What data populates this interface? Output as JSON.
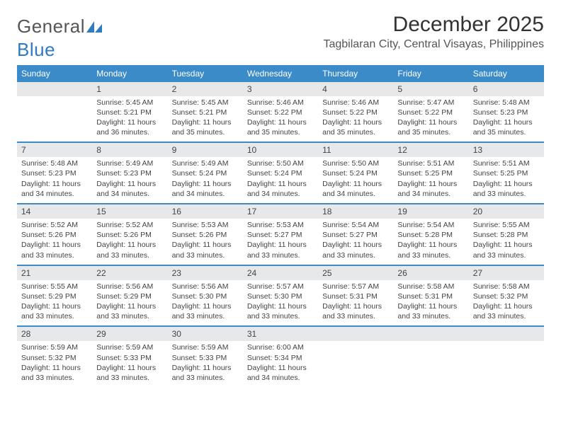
{
  "logo": {
    "text_gray": "General",
    "text_blue": "Blue"
  },
  "title": "December 2025",
  "location": "Tagbilaran City, Central Visayas, Philippines",
  "colors": {
    "header_bg": "#3b8bc9",
    "header_text": "#ffffff",
    "daynum_bg": "#e7e8e9",
    "border": "#3b8bc9",
    "logo_blue": "#2f7bbf",
    "body_text": "#444"
  },
  "day_names": [
    "Sunday",
    "Monday",
    "Tuesday",
    "Wednesday",
    "Thursday",
    "Friday",
    "Saturday"
  ],
  "weeks": [
    [
      {
        "n": "",
        "lines": []
      },
      {
        "n": "1",
        "lines": [
          "Sunrise: 5:45 AM",
          "Sunset: 5:21 PM",
          "Daylight: 11 hours",
          "and 36 minutes."
        ]
      },
      {
        "n": "2",
        "lines": [
          "Sunrise: 5:45 AM",
          "Sunset: 5:21 PM",
          "Daylight: 11 hours",
          "and 35 minutes."
        ]
      },
      {
        "n": "3",
        "lines": [
          "Sunrise: 5:46 AM",
          "Sunset: 5:22 PM",
          "Daylight: 11 hours",
          "and 35 minutes."
        ]
      },
      {
        "n": "4",
        "lines": [
          "Sunrise: 5:46 AM",
          "Sunset: 5:22 PM",
          "Daylight: 11 hours",
          "and 35 minutes."
        ]
      },
      {
        "n": "5",
        "lines": [
          "Sunrise: 5:47 AM",
          "Sunset: 5:22 PM",
          "Daylight: 11 hours",
          "and 35 minutes."
        ]
      },
      {
        "n": "6",
        "lines": [
          "Sunrise: 5:48 AM",
          "Sunset: 5:23 PM",
          "Daylight: 11 hours",
          "and 35 minutes."
        ]
      }
    ],
    [
      {
        "n": "7",
        "lines": [
          "Sunrise: 5:48 AM",
          "Sunset: 5:23 PM",
          "Daylight: 11 hours",
          "and 34 minutes."
        ]
      },
      {
        "n": "8",
        "lines": [
          "Sunrise: 5:49 AM",
          "Sunset: 5:23 PM",
          "Daylight: 11 hours",
          "and 34 minutes."
        ]
      },
      {
        "n": "9",
        "lines": [
          "Sunrise: 5:49 AM",
          "Sunset: 5:24 PM",
          "Daylight: 11 hours",
          "and 34 minutes."
        ]
      },
      {
        "n": "10",
        "lines": [
          "Sunrise: 5:50 AM",
          "Sunset: 5:24 PM",
          "Daylight: 11 hours",
          "and 34 minutes."
        ]
      },
      {
        "n": "11",
        "lines": [
          "Sunrise: 5:50 AM",
          "Sunset: 5:24 PM",
          "Daylight: 11 hours",
          "and 34 minutes."
        ]
      },
      {
        "n": "12",
        "lines": [
          "Sunrise: 5:51 AM",
          "Sunset: 5:25 PM",
          "Daylight: 11 hours",
          "and 34 minutes."
        ]
      },
      {
        "n": "13",
        "lines": [
          "Sunrise: 5:51 AM",
          "Sunset: 5:25 PM",
          "Daylight: 11 hours",
          "and 33 minutes."
        ]
      }
    ],
    [
      {
        "n": "14",
        "lines": [
          "Sunrise: 5:52 AM",
          "Sunset: 5:26 PM",
          "Daylight: 11 hours",
          "and 33 minutes."
        ]
      },
      {
        "n": "15",
        "lines": [
          "Sunrise: 5:52 AM",
          "Sunset: 5:26 PM",
          "Daylight: 11 hours",
          "and 33 minutes."
        ]
      },
      {
        "n": "16",
        "lines": [
          "Sunrise: 5:53 AM",
          "Sunset: 5:26 PM",
          "Daylight: 11 hours",
          "and 33 minutes."
        ]
      },
      {
        "n": "17",
        "lines": [
          "Sunrise: 5:53 AM",
          "Sunset: 5:27 PM",
          "Daylight: 11 hours",
          "and 33 minutes."
        ]
      },
      {
        "n": "18",
        "lines": [
          "Sunrise: 5:54 AM",
          "Sunset: 5:27 PM",
          "Daylight: 11 hours",
          "and 33 minutes."
        ]
      },
      {
        "n": "19",
        "lines": [
          "Sunrise: 5:54 AM",
          "Sunset: 5:28 PM",
          "Daylight: 11 hours",
          "and 33 minutes."
        ]
      },
      {
        "n": "20",
        "lines": [
          "Sunrise: 5:55 AM",
          "Sunset: 5:28 PM",
          "Daylight: 11 hours",
          "and 33 minutes."
        ]
      }
    ],
    [
      {
        "n": "21",
        "lines": [
          "Sunrise: 5:55 AM",
          "Sunset: 5:29 PM",
          "Daylight: 11 hours",
          "and 33 minutes."
        ]
      },
      {
        "n": "22",
        "lines": [
          "Sunrise: 5:56 AM",
          "Sunset: 5:29 PM",
          "Daylight: 11 hours",
          "and 33 minutes."
        ]
      },
      {
        "n": "23",
        "lines": [
          "Sunrise: 5:56 AM",
          "Sunset: 5:30 PM",
          "Daylight: 11 hours",
          "and 33 minutes."
        ]
      },
      {
        "n": "24",
        "lines": [
          "Sunrise: 5:57 AM",
          "Sunset: 5:30 PM",
          "Daylight: 11 hours",
          "and 33 minutes."
        ]
      },
      {
        "n": "25",
        "lines": [
          "Sunrise: 5:57 AM",
          "Sunset: 5:31 PM",
          "Daylight: 11 hours",
          "and 33 minutes."
        ]
      },
      {
        "n": "26",
        "lines": [
          "Sunrise: 5:58 AM",
          "Sunset: 5:31 PM",
          "Daylight: 11 hours",
          "and 33 minutes."
        ]
      },
      {
        "n": "27",
        "lines": [
          "Sunrise: 5:58 AM",
          "Sunset: 5:32 PM",
          "Daylight: 11 hours",
          "and 33 minutes."
        ]
      }
    ],
    [
      {
        "n": "28",
        "lines": [
          "Sunrise: 5:59 AM",
          "Sunset: 5:32 PM",
          "Daylight: 11 hours",
          "and 33 minutes."
        ]
      },
      {
        "n": "29",
        "lines": [
          "Sunrise: 5:59 AM",
          "Sunset: 5:33 PM",
          "Daylight: 11 hours",
          "and 33 minutes."
        ]
      },
      {
        "n": "30",
        "lines": [
          "Sunrise: 5:59 AM",
          "Sunset: 5:33 PM",
          "Daylight: 11 hours",
          "and 33 minutes."
        ]
      },
      {
        "n": "31",
        "lines": [
          "Sunrise: 6:00 AM",
          "Sunset: 5:34 PM",
          "Daylight: 11 hours",
          "and 34 minutes."
        ]
      },
      {
        "n": "",
        "lines": []
      },
      {
        "n": "",
        "lines": []
      },
      {
        "n": "",
        "lines": []
      }
    ]
  ]
}
